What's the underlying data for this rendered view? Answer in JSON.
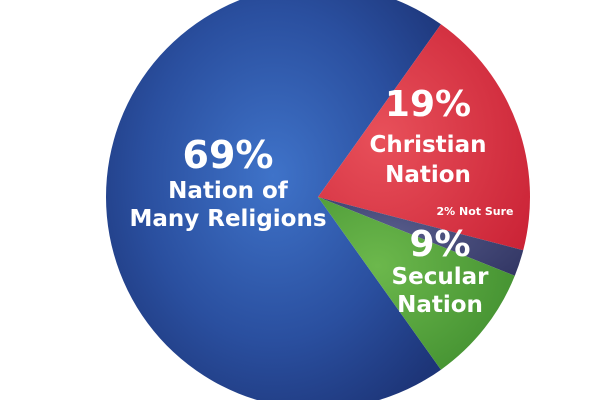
{
  "chart_data": {
    "type": "pie",
    "title": "",
    "slices": [
      {
        "percent_label": "69%",
        "label_lines": [
          "Nation of",
          "Many Religions"
        ],
        "value": 69,
        "color": "#2b4a9c"
      },
      {
        "percent_label": "19%",
        "label_lines": [
          "Christian",
          "Nation"
        ],
        "value": 19,
        "color": "#d8283c"
      },
      {
        "percent_label": "",
        "label_lines": [
          "2% Not Sure"
        ],
        "value": 2,
        "color": "#3a3f6e"
      },
      {
        "percent_label": "9%",
        "label_lines": [
          "Secular",
          "Nation"
        ],
        "value": 9,
        "color": "#4e9a3a"
      }
    ]
  }
}
